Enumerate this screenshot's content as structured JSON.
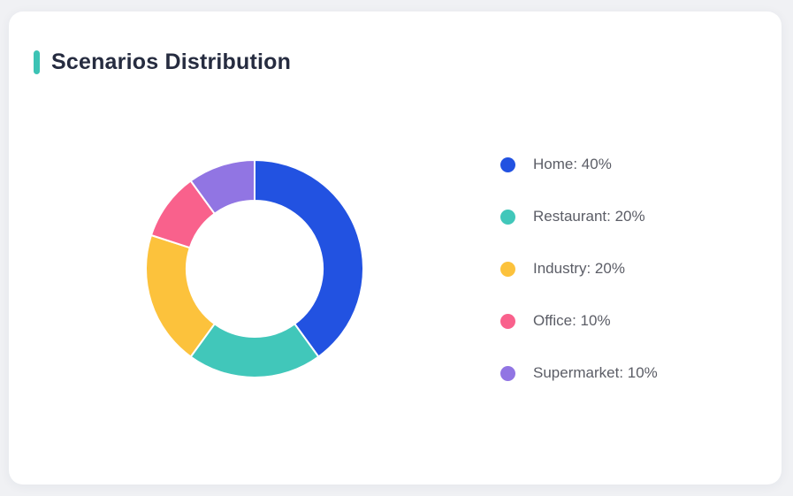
{
  "card": {
    "title": "Scenarios Distribution"
  },
  "chart_data": {
    "type": "pie",
    "subtype": "donut",
    "title": "Scenarios Distribution",
    "labels": [
      "Home",
      "Restaurant",
      "Industry",
      "Office",
      "Supermarket"
    ],
    "values": [
      40,
      20,
      20,
      10,
      10
    ],
    "unit": "%",
    "colors": [
      "#2252E1",
      "#41C7BA",
      "#FCC23C",
      "#F9618C",
      "#9175E3"
    ],
    "legend_items": [
      "Home: 40%",
      "Restaurant: 20%",
      "Industry: 20%",
      "Office: 10%",
      "Supermarket: 10%"
    ],
    "legend_position": "right",
    "start_angle_deg": 0,
    "direction": "clockwise",
    "inner_radius_ratio": 0.625
  },
  "colors": {
    "page_bg": "#F0F1F4",
    "card_bg": "#FFFFFF",
    "accent_bar": "#3CC3B5",
    "title_text": "#262C40",
    "legend_text": "#5B5D66",
    "segment_gap": "#FFFFFF"
  }
}
